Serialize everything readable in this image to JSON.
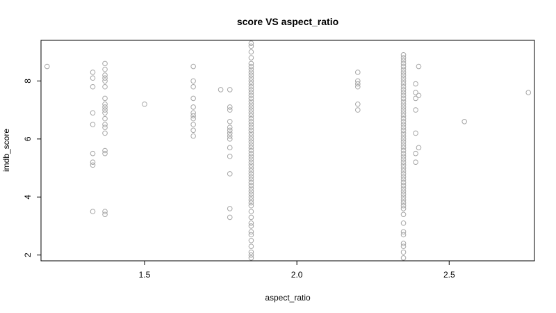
{
  "chart_data": {
    "type": "scatter",
    "title": "score VS aspect_ratio",
    "xlabel": "aspect_ratio",
    "ylabel": "imdb_score",
    "xlim": [
      1.16,
      2.78
    ],
    "ylim": [
      1.8,
      9.4
    ],
    "xticks": [
      1.5,
      2.0,
      2.5
    ],
    "xtick_labels": [
      "1.5",
      "2.0",
      "2.5"
    ],
    "yticks": [
      2,
      4,
      6,
      8
    ],
    "ytick_labels": [
      "2",
      "4",
      "6",
      "8"
    ],
    "grid": false,
    "legend": "none",
    "point_color": "#a6a6a6",
    "series": [
      {
        "points": [
          [
            1.18,
            8.5
          ],
          [
            1.33,
            8.3
          ],
          [
            1.33,
            8.1
          ],
          [
            1.33,
            7.8
          ],
          [
            1.33,
            6.9
          ],
          [
            1.33,
            6.5
          ],
          [
            1.33,
            5.5
          ],
          [
            1.33,
            5.2
          ],
          [
            1.33,
            5.1
          ],
          [
            1.33,
            3.5
          ],
          [
            1.37,
            8.6
          ],
          [
            1.37,
            8.4
          ],
          [
            1.37,
            8.2
          ],
          [
            1.37,
            8.1
          ],
          [
            1.37,
            8.0
          ],
          [
            1.37,
            7.8
          ],
          [
            1.37,
            7.4
          ],
          [
            1.37,
            7.2
          ],
          [
            1.37,
            7.1
          ],
          [
            1.37,
            7.0
          ],
          [
            1.37,
            6.9
          ],
          [
            1.37,
            6.7
          ],
          [
            1.37,
            6.5
          ],
          [
            1.37,
            6.4
          ],
          [
            1.37,
            6.2
          ],
          [
            1.37,
            5.6
          ],
          [
            1.37,
            5.5
          ],
          [
            1.37,
            3.5
          ],
          [
            1.37,
            3.4
          ],
          [
            1.5,
            7.2
          ],
          [
            1.66,
            8.5
          ],
          [
            1.66,
            8.0
          ],
          [
            1.66,
            7.8
          ],
          [
            1.66,
            7.4
          ],
          [
            1.66,
            7.1
          ],
          [
            1.66,
            6.9
          ],
          [
            1.66,
            6.8
          ],
          [
            1.66,
            6.7
          ],
          [
            1.66,
            6.5
          ],
          [
            1.66,
            6.3
          ],
          [
            1.66,
            6.1
          ],
          [
            1.75,
            7.7
          ],
          [
            1.78,
            7.7
          ],
          [
            1.78,
            7.1
          ],
          [
            1.78,
            7.0
          ],
          [
            1.78,
            6.6
          ],
          [
            1.78,
            6.4
          ],
          [
            1.78,
            6.3
          ],
          [
            1.78,
            6.2
          ],
          [
            1.78,
            6.1
          ],
          [
            1.78,
            6.0
          ],
          [
            1.78,
            5.7
          ],
          [
            1.78,
            5.4
          ],
          [
            1.78,
            4.8
          ],
          [
            1.78,
            3.6
          ],
          [
            1.78,
            3.3
          ],
          [
            1.85,
            9.3
          ],
          [
            1.85,
            9.2
          ],
          [
            1.85,
            9.0
          ],
          [
            1.85,
            8.8
          ],
          [
            1.85,
            8.6
          ],
          [
            1.85,
            8.5
          ],
          [
            1.85,
            8.4
          ],
          [
            1.85,
            8.3
          ],
          [
            1.85,
            8.2
          ],
          [
            1.85,
            8.1
          ],
          [
            1.85,
            8.0
          ],
          [
            1.85,
            7.9
          ],
          [
            1.85,
            7.8
          ],
          [
            1.85,
            7.7
          ],
          [
            1.85,
            7.6
          ],
          [
            1.85,
            7.5
          ],
          [
            1.85,
            7.4
          ],
          [
            1.85,
            7.3
          ],
          [
            1.85,
            7.2
          ],
          [
            1.85,
            7.1
          ],
          [
            1.85,
            7.0
          ],
          [
            1.85,
            6.9
          ],
          [
            1.85,
            6.8
          ],
          [
            1.85,
            6.7
          ],
          [
            1.85,
            6.6
          ],
          [
            1.85,
            6.5
          ],
          [
            1.85,
            6.4
          ],
          [
            1.85,
            6.3
          ],
          [
            1.85,
            6.2
          ],
          [
            1.85,
            6.1
          ],
          [
            1.85,
            6.0
          ],
          [
            1.85,
            5.9
          ],
          [
            1.85,
            5.8
          ],
          [
            1.85,
            5.7
          ],
          [
            1.85,
            5.6
          ],
          [
            1.85,
            5.5
          ],
          [
            1.85,
            5.4
          ],
          [
            1.85,
            5.3
          ],
          [
            1.85,
            5.2
          ],
          [
            1.85,
            5.1
          ],
          [
            1.85,
            5.0
          ],
          [
            1.85,
            4.9
          ],
          [
            1.85,
            4.8
          ],
          [
            1.85,
            4.7
          ],
          [
            1.85,
            4.6
          ],
          [
            1.85,
            4.5
          ],
          [
            1.85,
            4.4
          ],
          [
            1.85,
            4.3
          ],
          [
            1.85,
            4.2
          ],
          [
            1.85,
            4.1
          ],
          [
            1.85,
            4.0
          ],
          [
            1.85,
            3.9
          ],
          [
            1.85,
            3.8
          ],
          [
            1.85,
            3.7
          ],
          [
            1.85,
            3.5
          ],
          [
            1.85,
            3.3
          ],
          [
            1.85,
            3.1
          ],
          [
            1.85,
            3.0
          ],
          [
            1.85,
            2.8
          ],
          [
            1.85,
            2.7
          ],
          [
            1.85,
            2.5
          ],
          [
            1.85,
            2.3
          ],
          [
            1.85,
            2.1
          ],
          [
            1.85,
            2.0
          ],
          [
            1.85,
            1.9
          ],
          [
            2.2,
            8.3
          ],
          [
            2.2,
            8.0
          ],
          [
            2.2,
            7.9
          ],
          [
            2.2,
            7.8
          ],
          [
            2.2,
            7.2
          ],
          [
            2.2,
            7.0
          ],
          [
            2.35,
            8.9
          ],
          [
            2.35,
            8.8
          ],
          [
            2.35,
            8.7
          ],
          [
            2.35,
            8.6
          ],
          [
            2.35,
            8.5
          ],
          [
            2.35,
            8.4
          ],
          [
            2.35,
            8.3
          ],
          [
            2.35,
            8.2
          ],
          [
            2.35,
            8.1
          ],
          [
            2.35,
            8.0
          ],
          [
            2.35,
            7.9
          ],
          [
            2.35,
            7.8
          ],
          [
            2.35,
            7.7
          ],
          [
            2.35,
            7.6
          ],
          [
            2.35,
            7.5
          ],
          [
            2.35,
            7.4
          ],
          [
            2.35,
            7.3
          ],
          [
            2.35,
            7.2
          ],
          [
            2.35,
            7.1
          ],
          [
            2.35,
            7.0
          ],
          [
            2.35,
            6.9
          ],
          [
            2.35,
            6.8
          ],
          [
            2.35,
            6.7
          ],
          [
            2.35,
            6.6
          ],
          [
            2.35,
            6.5
          ],
          [
            2.35,
            6.4
          ],
          [
            2.35,
            6.3
          ],
          [
            2.35,
            6.2
          ],
          [
            2.35,
            6.1
          ],
          [
            2.35,
            6.0
          ],
          [
            2.35,
            5.9
          ],
          [
            2.35,
            5.8
          ],
          [
            2.35,
            5.7
          ],
          [
            2.35,
            5.6
          ],
          [
            2.35,
            5.5
          ],
          [
            2.35,
            5.4
          ],
          [
            2.35,
            5.3
          ],
          [
            2.35,
            5.2
          ],
          [
            2.35,
            5.1
          ],
          [
            2.35,
            5.0
          ],
          [
            2.35,
            4.9
          ],
          [
            2.35,
            4.8
          ],
          [
            2.35,
            4.7
          ],
          [
            2.35,
            4.6
          ],
          [
            2.35,
            4.5
          ],
          [
            2.35,
            4.4
          ],
          [
            2.35,
            4.3
          ],
          [
            2.35,
            4.2
          ],
          [
            2.35,
            4.1
          ],
          [
            2.35,
            4.0
          ],
          [
            2.35,
            3.9
          ],
          [
            2.35,
            3.8
          ],
          [
            2.35,
            3.7
          ],
          [
            2.35,
            3.6
          ],
          [
            2.35,
            3.4
          ],
          [
            2.35,
            3.1
          ],
          [
            2.35,
            2.8
          ],
          [
            2.35,
            2.7
          ],
          [
            2.35,
            2.4
          ],
          [
            2.35,
            2.3
          ],
          [
            2.35,
            2.1
          ],
          [
            2.35,
            1.9
          ],
          [
            2.39,
            7.9
          ],
          [
            2.39,
            7.6
          ],
          [
            2.39,
            7.4
          ],
          [
            2.39,
            7.0
          ],
          [
            2.39,
            6.2
          ],
          [
            2.39,
            5.5
          ],
          [
            2.39,
            5.2
          ],
          [
            2.4,
            8.5
          ],
          [
            2.4,
            7.5
          ],
          [
            2.4,
            5.7
          ],
          [
            2.55,
            6.6
          ],
          [
            2.76,
            7.6
          ]
        ]
      }
    ]
  }
}
